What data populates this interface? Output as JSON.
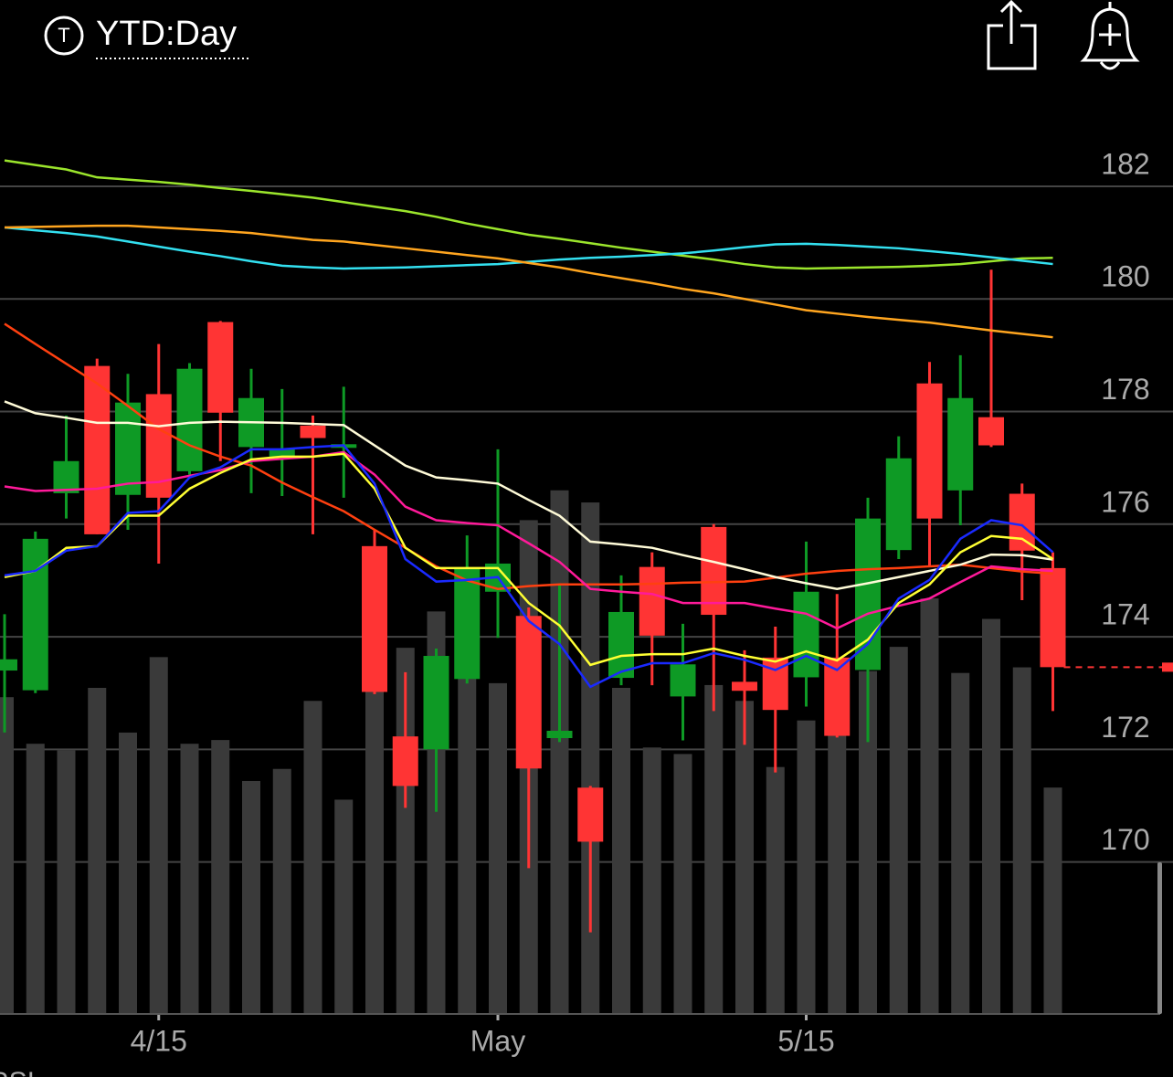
{
  "header": {
    "range": "YTD:Day"
  },
  "chart_data": {
    "type": "candlestick",
    "categories": [
      null,
      null,
      null,
      null,
      null,
      "4/15",
      null,
      null,
      null,
      null,
      null,
      null,
      null,
      null,
      null,
      null,
      "May",
      null,
      null,
      null,
      null,
      null,
      null,
      null,
      null,
      null,
      "5/15",
      null,
      null,
      null,
      null,
      null,
      null,
      null,
      null
    ],
    "open": [
      173.4,
      173.05,
      176.55,
      178.81,
      176.52,
      178.31,
      176.94,
      179.59,
      177.37,
      177.2,
      177.75,
      177.4,
      175.61,
      172.23,
      172.0,
      173.25,
      174.8,
      174.37,
      172.2,
      171.32,
      173.27,
      175.24,
      172.94,
      175.95,
      173.2,
      173.63,
      173.28,
      173.63,
      173.41,
      175.54,
      178.5,
      176.6,
      177.9,
      176.54,
      175.22
    ],
    "high": [
      174.4,
      175.87,
      177.93,
      178.94,
      178.67,
      179.2,
      178.86,
      179.61,
      178.76,
      178.4,
      177.93,
      178.44,
      175.9,
      173.37,
      173.79,
      175.8,
      177.33,
      174.52,
      174.93,
      171.35,
      175.09,
      175.5,
      174.23,
      176.0,
      173.76,
      174.18,
      175.69,
      174.76,
      176.47,
      177.56,
      178.88,
      179.0,
      180.52,
      176.72,
      175.5
    ],
    "low": [
      172.3,
      173.0,
      176.1,
      175.82,
      175.9,
      175.3,
      176.88,
      177.12,
      176.55,
      176.5,
      175.82,
      176.47,
      172.98,
      170.96,
      170.89,
      173.17,
      173.98,
      169.89,
      172.13,
      168.75,
      173.14,
      173.14,
      172.16,
      172.68,
      172.08,
      171.59,
      172.76,
      172.21,
      172.13,
      175.38,
      175.25,
      175.98,
      177.37,
      174.65,
      172.68
    ],
    "close": [
      173.6,
      175.74,
      177.12,
      175.82,
      178.16,
      176.47,
      178.76,
      177.98,
      178.24,
      177.33,
      177.53,
      177.42,
      173.02,
      171.35,
      173.66,
      175.22,
      175.3,
      171.66,
      172.33,
      170.36,
      174.44,
      174.02,
      173.51,
      174.39,
      173.04,
      172.7,
      174.8,
      172.24,
      176.1,
      177.17,
      176.1,
      178.24,
      177.4,
      175.53,
      173.46
    ],
    "volume": [
      340,
      290,
      283,
      350,
      302,
      383,
      290,
      294,
      250,
      263,
      336,
      230,
      353,
      393,
      432,
      395,
      355,
      530,
      562,
      549,
      350,
      286,
      279,
      353,
      336,
      265,
      315,
      305,
      368,
      394,
      446,
      366,
      424,
      372,
      243
    ],
    "up_color": "#0e9a25",
    "down_color": "#ff3434",
    "volume_color": "#3a3a3a",
    "lines": [
      {
        "color": "#9be52c",
        "values": [
          182.46,
          182.38,
          182.3,
          182.16,
          182.12,
          182.08,
          182.03,
          181.97,
          181.92,
          181.86,
          181.8,
          181.72,
          181.64,
          181.56,
          181.46,
          181.34,
          181.24,
          181.14,
          181.07,
          180.99,
          180.91,
          180.84,
          180.77,
          180.7,
          180.62,
          180.56,
          180.54,
          180.55,
          180.56,
          180.57,
          180.59,
          180.62,
          180.67,
          180.72,
          180.73
        ]
      },
      {
        "color": "#33e0f0",
        "values": [
          181.27,
          181.22,
          181.17,
          181.11,
          181.02,
          180.93,
          180.84,
          180.76,
          180.67,
          180.59,
          180.56,
          180.54,
          180.55,
          180.56,
          180.58,
          180.6,
          180.62,
          180.66,
          180.7,
          180.73,
          180.75,
          180.78,
          180.81,
          180.86,
          180.92,
          180.97,
          180.98,
          180.96,
          180.93,
          180.9,
          180.85,
          180.8,
          180.74,
          180.68,
          180.62
        ]
      },
      {
        "color": "#ffa51f",
        "values": [
          181.27,
          181.28,
          181.29,
          181.3,
          181.3,
          181.27,
          181.24,
          181.21,
          181.17,
          181.11,
          181.05,
          181.02,
          180.96,
          180.9,
          180.84,
          180.78,
          180.72,
          180.64,
          180.56,
          180.46,
          180.37,
          180.28,
          180.18,
          180.1,
          180.0,
          179.9,
          179.8,
          179.74,
          179.68,
          179.63,
          179.58,
          179.51,
          179.44,
          179.38,
          179.32
        ]
      },
      {
        "color": "#ff4010",
        "values": [
          179.56,
          179.2,
          178.85,
          178.5,
          178.1,
          177.69,
          177.4,
          177.2,
          177.04,
          176.74,
          176.48,
          176.23,
          175.9,
          175.58,
          175.25,
          175.0,
          174.85,
          174.9,
          174.93,
          174.93,
          174.93,
          174.94,
          174.96,
          174.97,
          174.98,
          175.05,
          175.12,
          175.17,
          175.2,
          175.22,
          175.25,
          175.28,
          175.22,
          175.16,
          175.12
        ]
      },
      {
        "color": "#ff1a9a",
        "values": [
          176.67,
          176.59,
          176.61,
          176.63,
          176.72,
          176.75,
          176.86,
          176.96,
          177.12,
          177.16,
          177.2,
          177.28,
          176.88,
          176.31,
          176.07,
          176.02,
          175.98,
          175.66,
          175.33,
          174.85,
          174.8,
          174.76,
          174.6,
          174.6,
          174.6,
          174.5,
          174.41,
          174.15,
          174.41,
          174.55,
          174.68,
          174.97,
          175.25,
          175.2,
          175.17
        ]
      },
      {
        "color": "#fffbd8",
        "values": [
          178.18,
          177.97,
          177.89,
          177.8,
          177.8,
          177.74,
          177.8,
          177.82,
          177.81,
          177.8,
          177.78,
          177.76,
          177.4,
          177.04,
          176.83,
          176.78,
          176.72,
          176.43,
          176.15,
          175.69,
          175.64,
          175.58,
          175.45,
          175.33,
          175.2,
          175.06,
          174.95,
          174.85,
          174.95,
          175.06,
          175.17,
          175.28,
          175.46,
          175.45,
          175.37
        ]
      },
      {
        "color": "#ffff33",
        "values": [
          175.06,
          175.17,
          175.58,
          175.61,
          176.15,
          176.15,
          176.63,
          176.91,
          177.15,
          177.2,
          177.2,
          177.25,
          176.63,
          175.58,
          175.22,
          175.22,
          175.22,
          174.6,
          174.2,
          173.5,
          173.66,
          173.69,
          173.69,
          173.79,
          173.66,
          173.56,
          173.74,
          173.58,
          173.95,
          174.6,
          174.93,
          175.5,
          175.79,
          175.74,
          175.38
        ]
      },
      {
        "color": "#1a2aff",
        "values": [
          175.09,
          175.17,
          175.53,
          175.61,
          176.2,
          176.23,
          176.83,
          177.01,
          177.33,
          177.33,
          177.37,
          177.4,
          176.72,
          175.38,
          174.98,
          175.01,
          175.06,
          174.28,
          173.87,
          173.11,
          173.38,
          173.53,
          173.53,
          173.71,
          173.59,
          173.41,
          173.66,
          173.41,
          173.87,
          174.68,
          175.01,
          175.74,
          176.07,
          175.98,
          175.5
        ]
      }
    ],
    "ylim": [
      167.3,
      183.85
    ],
    "yticks": [
      170,
      172,
      174,
      176,
      178,
      180,
      182
    ],
    "vlim": [
      0,
      1000
    ],
    "grid": true,
    "indicator": "RSI"
  }
}
